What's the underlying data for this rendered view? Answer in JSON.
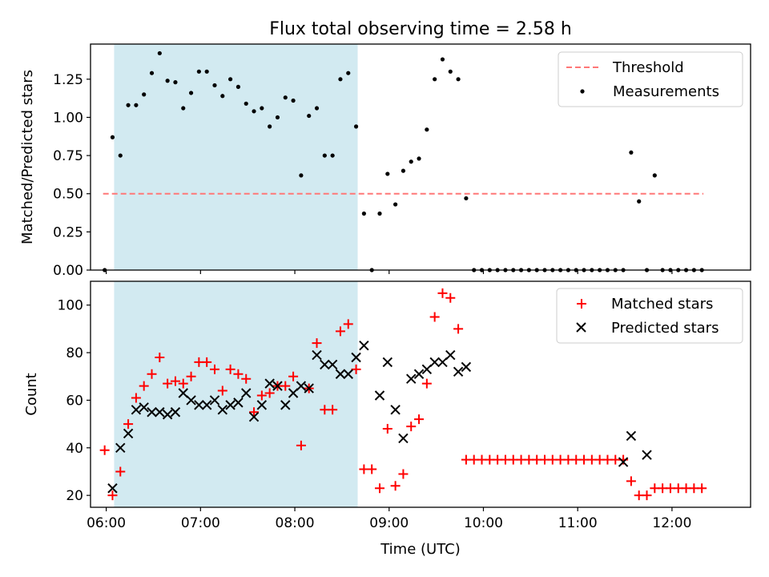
{
  "figure": {
    "title": "Flux total observing time = 2.58 h",
    "xlabel": "Time (UTC)"
  },
  "chart_data": [
    {
      "type": "scatter",
      "panel": "top",
      "ylabel": "Matched/Predicted stars",
      "xlim": [
        "05:50",
        "12:50"
      ],
      "ylim": [
        0,
        1.48
      ],
      "yticks": [
        0.0,
        0.25,
        0.5,
        0.75,
        1.0,
        1.25
      ],
      "ytick_labels": [
        "0.00",
        "0.25",
        "0.50",
        "0.75",
        "1.00",
        "1.25"
      ],
      "x_ticks": [
        "06:00",
        "07:00",
        "08:00",
        "09:00",
        "10:00",
        "11:00",
        "12:00"
      ],
      "x_tick_labels_shown": false,
      "shaded_region": {
        "x_start": "06:05",
        "x_end": "08:40",
        "color": "#add8e6"
      },
      "legend": {
        "location": "top-right",
        "entries": [
          "Threshold",
          "Measurements"
        ]
      },
      "series": [
        {
          "name": "Threshold",
          "kind": "dashed-line",
          "color": "#ff7777",
          "x": [
            "05:58",
            "12:20"
          ],
          "y": [
            0.5,
            0.5
          ]
        },
        {
          "name": "Measurements",
          "kind": "points",
          "color": "#000000",
          "x": [
            "05:59",
            "06:04",
            "06:09",
            "06:14",
            "06:19",
            "06:24",
            "06:29",
            "06:34",
            "06:39",
            "06:44",
            "06:49",
            "06:54",
            "06:59",
            "07:04",
            "07:09",
            "07:14",
            "07:19",
            "07:24",
            "07:29",
            "07:34",
            "07:39",
            "07:44",
            "07:49",
            "07:54",
            "07:59",
            "08:04",
            "08:09",
            "08:14",
            "08:19",
            "08:24",
            "08:29",
            "08:34",
            "08:39",
            "08:44",
            "08:49",
            "08:54",
            "08:59",
            "09:04",
            "09:09",
            "09:14",
            "09:19",
            "09:24",
            "09:29",
            "09:34",
            "09:39",
            "09:44",
            "09:49",
            "09:54",
            "09:59",
            "10:04",
            "10:09",
            "10:14",
            "10:19",
            "10:24",
            "10:29",
            "10:34",
            "10:39",
            "10:44",
            "10:49",
            "10:54",
            "10:59",
            "11:04",
            "11:09",
            "11:14",
            "11:19",
            "11:24",
            "11:29",
            "11:34",
            "11:39",
            "11:44",
            "11:49",
            "11:54",
            "11:59",
            "12:04",
            "12:09",
            "12:14",
            "12:19"
          ],
          "y": [
            0.0,
            0.87,
            0.75,
            1.08,
            1.08,
            1.15,
            1.29,
            1.42,
            1.24,
            1.23,
            1.06,
            1.16,
            1.3,
            1.3,
            1.21,
            1.14,
            1.25,
            1.2,
            1.09,
            1.04,
            1.06,
            0.94,
            1.0,
            1.13,
            1.11,
            0.62,
            1.01,
            1.06,
            0.75,
            0.75,
            1.25,
            1.29,
            0.94,
            0.37,
            0.0,
            0.37,
            0.63,
            0.43,
            0.65,
            0.71,
            0.73,
            0.92,
            1.25,
            1.38,
            1.3,
            1.25,
            0.47,
            0.0,
            0.0,
            0.0,
            0.0,
            0.0,
            0.0,
            0.0,
            0.0,
            0.0,
            0.0,
            0.0,
            0.0,
            0.0,
            0.0,
            0.0,
            0.0,
            0.0,
            0.0,
            0.0,
            0.0,
            0.77,
            0.45,
            0.0,
            0.62,
            0.0,
            0.0,
            0.0,
            0.0,
            0.0,
            0.0
          ]
        }
      ]
    },
    {
      "type": "scatter",
      "panel": "bottom",
      "ylabel": "Count",
      "xlim": [
        "05:50",
        "12:50"
      ],
      "ylim": [
        15,
        110
      ],
      "yticks": [
        20,
        40,
        60,
        80,
        100
      ],
      "ytick_labels": [
        "20",
        "40",
        "60",
        "80",
        "100"
      ],
      "x_ticks": [
        "06:00",
        "07:00",
        "08:00",
        "09:00",
        "10:00",
        "11:00",
        "12:00"
      ],
      "x_tick_labels": [
        "06:00",
        "07:00",
        "08:00",
        "09:00",
        "10:00",
        "11:00",
        "12:00"
      ],
      "shaded_region": {
        "x_start": "06:05",
        "x_end": "08:40",
        "color": "#add8e6"
      },
      "legend": {
        "location": "top-right",
        "entries": [
          "Matched stars",
          "Predicted stars"
        ]
      },
      "series": [
        {
          "name": "Matched stars",
          "marker": "plus",
          "color": "#ff0000",
          "x": [
            "05:59",
            "06:04",
            "06:09",
            "06:14",
            "06:19",
            "06:24",
            "06:29",
            "06:34",
            "06:39",
            "06:44",
            "06:49",
            "06:54",
            "06:59",
            "07:04",
            "07:09",
            "07:14",
            "07:19",
            "07:24",
            "07:29",
            "07:34",
            "07:39",
            "07:44",
            "07:49",
            "07:54",
            "07:59",
            "08:04",
            "08:09",
            "08:14",
            "08:19",
            "08:24",
            "08:29",
            "08:34",
            "08:39",
            "08:44",
            "08:49",
            "08:54",
            "08:59",
            "09:04",
            "09:09",
            "09:14",
            "09:19",
            "09:24",
            "09:29",
            "09:34",
            "09:39",
            "09:44",
            "09:49",
            "09:54",
            "09:59",
            "10:04",
            "10:09",
            "10:14",
            "10:19",
            "10:24",
            "10:29",
            "10:34",
            "10:39",
            "10:44",
            "10:49",
            "10:54",
            "10:59",
            "11:04",
            "11:09",
            "11:14",
            "11:19",
            "11:24",
            "11:29",
            "11:34",
            "11:39",
            "11:44",
            "11:49",
            "11:54",
            "11:59",
            "12:04",
            "12:09",
            "12:14",
            "12:19"
          ],
          "y": [
            39,
            20,
            30,
            50,
            61,
            66,
            71,
            78,
            67,
            68,
            67,
            70,
            76,
            76,
            73,
            64,
            73,
            71,
            69,
            55,
            62,
            63,
            66,
            66,
            70,
            41,
            65,
            84,
            56,
            56,
            89,
            92,
            73,
            31,
            31,
            23,
            48,
            24,
            29,
            49,
            52,
            67,
            95,
            105,
            103,
            90,
            35,
            35,
            35,
            35,
            35,
            35,
            35,
            35,
            35,
            35,
            35,
            35,
            35,
            35,
            35,
            35,
            35,
            35,
            35,
            35,
            35,
            26,
            20,
            20,
            23,
            23,
            23,
            23,
            23,
            23,
            23
          ]
        },
        {
          "name": "Predicted stars",
          "marker": "x",
          "color": "#000000",
          "x": [
            "06:04",
            "06:09",
            "06:14",
            "06:19",
            "06:24",
            "06:29",
            "06:34",
            "06:39",
            "06:44",
            "06:49",
            "06:54",
            "06:59",
            "07:04",
            "07:09",
            "07:14",
            "07:19",
            "07:24",
            "07:29",
            "07:34",
            "07:39",
            "07:44",
            "07:49",
            "07:54",
            "07:59",
            "08:04",
            "08:09",
            "08:14",
            "08:19",
            "08:24",
            "08:29",
            "08:34",
            "08:39",
            "08:44",
            "08:49",
            "08:54",
            "08:59",
            "09:04",
            "09:09",
            "09:14",
            "09:19",
            "09:24",
            "09:29",
            "09:34",
            "09:39",
            "09:44",
            "09:49",
            "11:29",
            "11:34",
            "11:44"
          ],
          "y": [
            23,
            40,
            46,
            56,
            57,
            55,
            55,
            54,
            55,
            63,
            60,
            58,
            58,
            60,
            56,
            58,
            59,
            63,
            53,
            58,
            67,
            66,
            58,
            63,
            66,
            65,
            79,
            75,
            75,
            71,
            71,
            78,
            83,
            null,
            62,
            76,
            56,
            44,
            69,
            71,
            73,
            76,
            76,
            79,
            72,
            74,
            34,
            45,
            37
          ]
        }
      ]
    }
  ]
}
